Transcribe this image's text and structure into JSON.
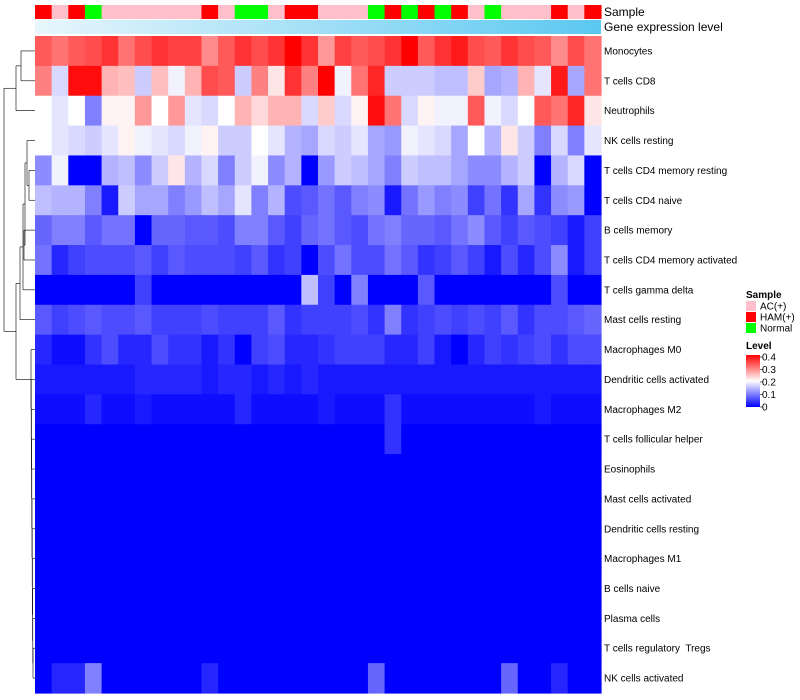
{
  "chart_data": {
    "type": "heatmap",
    "annotation_labels": {
      "sample": "Sample",
      "expression": "Gene expression level"
    },
    "legend": {
      "sample_title": "Sample",
      "groups": [
        "AC(+)",
        "HAM(+)",
        "Normal"
      ],
      "group_colors": [
        "#FFC0CB",
        "#FF0000",
        "#00FF00"
      ],
      "level_title": "Level",
      "level_ticks": [
        "0.4",
        "0.3",
        "0.2",
        "0.1",
        "0"
      ]
    },
    "color_scale": {
      "min": 0,
      "max": 0.4,
      "low": "#0000FF",
      "mid": "#FFFFFF",
      "high": "#FF0000",
      "mid_value": 0.2
    },
    "expression_bar_color": "#5BC8F0",
    "sample_groups": "RPRGPPPPPPRPGGPRRPPPGRGRGRPGPPPRPR",
    "rows": [
      "Monocytes",
      "T cells CD8",
      "Neutrophils",
      "NK cells resting",
      "T cells CD4 memory resting",
      "T cells CD4 naive",
      "B cells memory",
      "T cells CD4 memory activated",
      "T cells gamma delta",
      "Mast cells resting",
      "Macrophages M0",
      "Dendritic cells activated",
      "Macrophages M2",
      "T cells follicular helper",
      "Eosinophils",
      "Mast cells activated",
      "Dendritic cells resting",
      "Macrophages M1",
      "B cells naive",
      "Plasma cells",
      "T cells regulatory  Tregs",
      "NK cells activated"
    ],
    "values": [
      [
        0.33,
        0.31,
        0.33,
        0.34,
        0.36,
        0.31,
        0.34,
        0.36,
        0.35,
        0.35,
        0.29,
        0.33,
        0.36,
        0.34,
        0.36,
        0.4,
        0.36,
        0.28,
        0.35,
        0.33,
        0.34,
        0.36,
        0.4,
        0.33,
        0.36,
        0.38,
        0.34,
        0.33,
        0.36,
        0.34,
        0.33,
        0.29,
        0.34,
        0.31
      ],
      [
        0.3,
        0.17,
        0.39,
        0.39,
        0.26,
        0.25,
        0.16,
        0.25,
        0.19,
        0.26,
        0.34,
        0.33,
        0.16,
        0.3,
        0.22,
        0.36,
        0.3,
        0.4,
        0.19,
        0.31,
        0.37,
        0.16,
        0.16,
        0.16,
        0.15,
        0.15,
        0.24,
        0.13,
        0.14,
        0.26,
        0.18,
        0.38,
        0.13,
        0.31
      ],
      [
        0.2,
        0.18,
        0.2,
        0.1,
        0.21,
        0.21,
        0.28,
        0.2,
        0.28,
        0.18,
        0.17,
        0.2,
        0.26,
        0.23,
        0.26,
        0.26,
        0.17,
        0.24,
        0.17,
        0.21,
        0.39,
        0.31,
        0.17,
        0.21,
        0.19,
        0.19,
        0.33,
        0.19,
        0.17,
        0.2,
        0.33,
        0.31,
        0.37,
        0.22
      ],
      [
        0.2,
        0.18,
        0.17,
        0.16,
        0.18,
        0.21,
        0.19,
        0.18,
        0.17,
        0.19,
        0.21,
        0.16,
        0.16,
        0.2,
        0.18,
        0.14,
        0.13,
        0.17,
        0.16,
        0.18,
        0.13,
        0.12,
        0.19,
        0.18,
        0.17,
        0.13,
        0.2,
        0.14,
        0.22,
        0.16,
        0.1,
        0.17,
        0.1,
        0.18
      ],
      [
        0.11,
        0.19,
        0.0,
        0.0,
        0.14,
        0.15,
        0.11,
        0.16,
        0.22,
        0.14,
        0.17,
        0.1,
        0.16,
        0.19,
        0.11,
        0.14,
        0.0,
        0.12,
        0.16,
        0.15,
        0.13,
        0.1,
        0.16,
        0.15,
        0.15,
        0.13,
        0.11,
        0.11,
        0.14,
        0.16,
        0.0,
        0.14,
        0.17,
        0.0
      ],
      [
        0.15,
        0.14,
        0.14,
        0.1,
        0.02,
        0.16,
        0.13,
        0.13,
        0.1,
        0.12,
        0.15,
        0.13,
        0.18,
        0.1,
        0.14,
        0.06,
        0.07,
        0.09,
        0.07,
        0.1,
        0.11,
        0.02,
        0.09,
        0.12,
        0.1,
        0.11,
        0.05,
        0.09,
        0.04,
        0.13,
        0.04,
        0.11,
        0.12,
        0.0
      ],
      [
        0.08,
        0.1,
        0.1,
        0.07,
        0.09,
        0.09,
        0.0,
        0.08,
        0.08,
        0.07,
        0.07,
        0.06,
        0.1,
        0.1,
        0.07,
        0.05,
        0.08,
        0.09,
        0.07,
        0.06,
        0.09,
        0.1,
        0.08,
        0.08,
        0.07,
        0.09,
        0.11,
        0.07,
        0.05,
        0.07,
        0.06,
        0.05,
        0.02,
        0.05
      ],
      [
        0.09,
        0.03,
        0.05,
        0.06,
        0.06,
        0.06,
        0.07,
        0.05,
        0.07,
        0.06,
        0.06,
        0.06,
        0.05,
        0.07,
        0.04,
        0.05,
        0.0,
        0.06,
        0.09,
        0.06,
        0.06,
        0.09,
        0.07,
        0.04,
        0.05,
        0.07,
        0.05,
        0.02,
        0.06,
        0.03,
        0.06,
        0.11,
        0.02,
        0.05
      ],
      [
        0.0,
        0.0,
        0.0,
        0.0,
        0.0,
        0.0,
        0.05,
        0.0,
        0.0,
        0.0,
        0.0,
        0.0,
        0.0,
        0.0,
        0.0,
        0.0,
        0.15,
        0.05,
        0.0,
        0.1,
        0.0,
        0.0,
        0.0,
        0.07,
        0.0,
        0.0,
        0.0,
        0.0,
        0.0,
        0.0,
        0.0,
        0.06,
        0.0,
        0.0
      ],
      [
        0.07,
        0.05,
        0.06,
        0.07,
        0.06,
        0.06,
        0.07,
        0.05,
        0.05,
        0.05,
        0.06,
        0.05,
        0.05,
        0.05,
        0.07,
        0.04,
        0.05,
        0.05,
        0.05,
        0.06,
        0.04,
        0.1,
        0.04,
        0.05,
        0.06,
        0.05,
        0.06,
        0.05,
        0.07,
        0.04,
        0.06,
        0.06,
        0.07,
        0.08
      ],
      [
        0.03,
        0.01,
        0.01,
        0.04,
        0.06,
        0.03,
        0.03,
        0.06,
        0.04,
        0.04,
        0.02,
        0.04,
        0.0,
        0.05,
        0.06,
        0.03,
        0.03,
        0.04,
        0.05,
        0.05,
        0.05,
        0.03,
        0.03,
        0.05,
        0.02,
        0.0,
        0.03,
        0.05,
        0.04,
        0.05,
        0.06,
        0.04,
        0.06,
        0.06
      ],
      [
        0.02,
        0.02,
        0.02,
        0.02,
        0.02,
        0.02,
        0.03,
        0.03,
        0.03,
        0.03,
        0.02,
        0.03,
        0.03,
        0.02,
        0.03,
        0.02,
        0.03,
        0.02,
        0.02,
        0.02,
        0.02,
        0.02,
        0.02,
        0.02,
        0.02,
        0.02,
        0.02,
        0.02,
        0.02,
        0.02,
        0.02,
        0.02,
        0.02,
        0.02
      ],
      [
        0.01,
        0.01,
        0.01,
        0.03,
        0.01,
        0.01,
        0.02,
        0.01,
        0.01,
        0.01,
        0.01,
        0.01,
        0.03,
        0.01,
        0.01,
        0.01,
        0.01,
        0.02,
        0.01,
        0.01,
        0.01,
        0.04,
        0.01,
        0.01,
        0.01,
        0.01,
        0.01,
        0.01,
        0.01,
        0.01,
        0.02,
        0.01,
        0.01,
        0.01
      ],
      [
        0.0,
        0.0,
        0.0,
        0.0,
        0.0,
        0.0,
        0.0,
        0.0,
        0.0,
        0.0,
        0.0,
        0.0,
        0.0,
        0.0,
        0.0,
        0.0,
        0.0,
        0.0,
        0.0,
        0.0,
        0.0,
        0.04,
        0.0,
        0.0,
        0.0,
        0.0,
        0.0,
        0.0,
        0.0,
        0.0,
        0.0,
        0.0,
        0.0,
        0.0
      ],
      [
        0.0,
        0.0,
        0.0,
        0.0,
        0.0,
        0.0,
        0.0,
        0.0,
        0.0,
        0.0,
        0.0,
        0.0,
        0.0,
        0.0,
        0.0,
        0.0,
        0.0,
        0.0,
        0.0,
        0.0,
        0.0,
        0.0,
        0.0,
        0.0,
        0.0,
        0.0,
        0.0,
        0.0,
        0.0,
        0.0,
        0.0,
        0.0,
        0.0,
        0.0
      ],
      [
        0.0,
        0.0,
        0.0,
        0.0,
        0.0,
        0.0,
        0.0,
        0.0,
        0.0,
        0.0,
        0.0,
        0.0,
        0.0,
        0.0,
        0.0,
        0.0,
        0.0,
        0.0,
        0.0,
        0.0,
        0.0,
        0.0,
        0.0,
        0.0,
        0.0,
        0.0,
        0.0,
        0.0,
        0.0,
        0.0,
        0.0,
        0.0,
        0.0,
        0.0
      ],
      [
        0.0,
        0.0,
        0.0,
        0.0,
        0.0,
        0.0,
        0.0,
        0.0,
        0.0,
        0.0,
        0.0,
        0.0,
        0.0,
        0.0,
        0.0,
        0.0,
        0.0,
        0.0,
        0.0,
        0.0,
        0.0,
        0.0,
        0.0,
        0.0,
        0.0,
        0.0,
        0.0,
        0.0,
        0.0,
        0.0,
        0.0,
        0.0,
        0.0,
        0.0
      ],
      [
        0.0,
        0.0,
        0.0,
        0.0,
        0.0,
        0.0,
        0.0,
        0.0,
        0.0,
        0.0,
        0.0,
        0.0,
        0.0,
        0.0,
        0.0,
        0.0,
        0.0,
        0.0,
        0.0,
        0.0,
        0.0,
        0.0,
        0.0,
        0.0,
        0.0,
        0.0,
        0.0,
        0.0,
        0.0,
        0.0,
        0.0,
        0.0,
        0.0,
        0.0
      ],
      [
        0.0,
        0.0,
        0.0,
        0.0,
        0.0,
        0.0,
        0.0,
        0.0,
        0.0,
        0.0,
        0.0,
        0.0,
        0.0,
        0.0,
        0.0,
        0.0,
        0.0,
        0.0,
        0.0,
        0.0,
        0.0,
        0.0,
        0.0,
        0.0,
        0.0,
        0.0,
        0.0,
        0.0,
        0.0,
        0.0,
        0.0,
        0.0,
        0.0,
        0.0
      ],
      [
        0.0,
        0.0,
        0.0,
        0.0,
        0.0,
        0.0,
        0.0,
        0.0,
        0.0,
        0.0,
        0.0,
        0.0,
        0.0,
        0.0,
        0.0,
        0.0,
        0.0,
        0.0,
        0.0,
        0.0,
        0.0,
        0.0,
        0.0,
        0.0,
        0.0,
        0.0,
        0.0,
        0.0,
        0.0,
        0.0,
        0.0,
        0.0,
        0.0,
        0.0
      ],
      [
        0.0,
        0.0,
        0.0,
        0.0,
        0.0,
        0.0,
        0.0,
        0.0,
        0.0,
        0.0,
        0.0,
        0.0,
        0.0,
        0.0,
        0.0,
        0.0,
        0.0,
        0.0,
        0.0,
        0.0,
        0.0,
        0.0,
        0.0,
        0.0,
        0.0,
        0.0,
        0.0,
        0.0,
        0.0,
        0.0,
        0.0,
        0.0,
        0.0,
        0.0
      ],
      [
        0.0,
        0.03,
        0.03,
        0.1,
        0.0,
        0.0,
        0.0,
        0.0,
        0.0,
        0.0,
        0.03,
        0.0,
        0.0,
        0.0,
        0.0,
        0.0,
        0.0,
        0.0,
        0.0,
        0.0,
        0.08,
        0.0,
        0.0,
        0.0,
        0.0,
        0.0,
        0.0,
        0.0,
        0.08,
        0.0,
        0.0,
        0.03,
        0.0,
        0.0
      ]
    ]
  }
}
